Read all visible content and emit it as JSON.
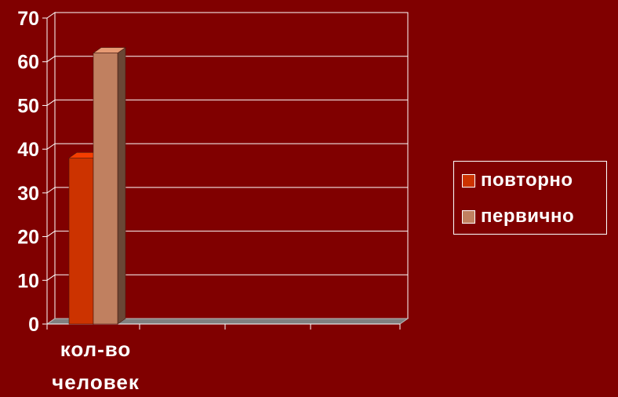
{
  "chart_data": {
    "type": "bar",
    "categories": [
      "кол-во человек"
    ],
    "category_label_lines": [
      [
        "кол-во",
        "человек"
      ]
    ],
    "series": [
      {
        "name": "повторно",
        "values": [
          38
        ],
        "color": "#cc3300"
      },
      {
        "name": "первично",
        "values": [
          62
        ],
        "color": "#c08060"
      }
    ],
    "y_ticks": [
      "0",
      "10",
      "20",
      "30",
      "40",
      "50",
      "60",
      "70"
    ],
    "ylim": [
      0,
      70
    ],
    "grid": true,
    "three_d": true,
    "legend_position": "right",
    "colors": {
      "background": "#800000",
      "axis": "#ffffff",
      "grid": "#ffffff",
      "floor": "#808080"
    }
  }
}
